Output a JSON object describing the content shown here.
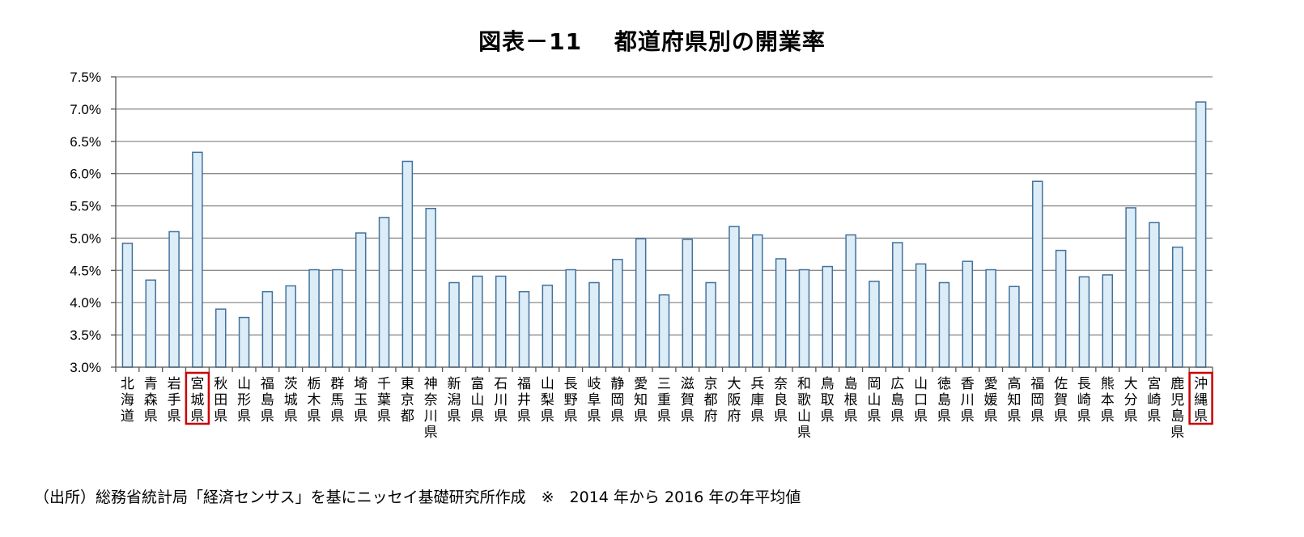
{
  "chart_data": {
    "type": "bar",
    "title": "図表－11　 都道府県別の開業率",
    "xlabel": "",
    "ylabel": "",
    "ylim": [
      3.0,
      7.5
    ],
    "yticks": [
      "3.0%",
      "3.5%",
      "4.0%",
      "4.5%",
      "5.0%",
      "5.5%",
      "6.0%",
      "6.5%",
      "7.0%",
      "7.5%"
    ],
    "grid": true,
    "legend": "none",
    "categories": [
      "北海道",
      "青森県",
      "岩手県",
      "宮城県",
      "秋田県",
      "山形県",
      "福島県",
      "茨城県",
      "栃木県",
      "群馬県",
      "埼玉県",
      "千葉県",
      "東京都",
      "神奈川県",
      "新潟県",
      "富山県",
      "石川県",
      "福井県",
      "山梨県",
      "長野県",
      "岐阜県",
      "静岡県",
      "愛知県",
      "三重県",
      "滋賀県",
      "京都府",
      "大阪府",
      "兵庫県",
      "奈良県",
      "和歌山県",
      "鳥取県",
      "島根県",
      "岡山県",
      "広島県",
      "山口県",
      "徳島県",
      "香川県",
      "愛媛県",
      "高知県",
      "福岡県",
      "佐賀県",
      "長崎県",
      "熊本県",
      "大分県",
      "宮崎県",
      "鹿児島県",
      "沖縄県"
    ],
    "values": [
      4.92,
      4.35,
      5.1,
      6.33,
      3.9,
      3.77,
      4.17,
      4.26,
      4.51,
      4.51,
      5.08,
      5.32,
      6.19,
      5.46,
      4.31,
      4.41,
      4.41,
      4.17,
      4.27,
      4.51,
      4.31,
      4.67,
      4.99,
      4.12,
      4.98,
      4.31,
      5.18,
      5.05,
      4.68,
      4.51,
      4.56,
      5.05,
      4.33,
      4.93,
      4.6,
      4.31,
      4.64,
      4.51,
      4.25,
      5.88,
      4.81,
      4.4,
      4.43,
      5.47,
      5.24,
      4.86,
      7.11
    ],
    "highlighted": [
      "宮城県",
      "沖縄県"
    ],
    "colors": {
      "bar_fill": "#dcedf7",
      "bar_stroke": "#41719c",
      "grid": "#8c8c8c",
      "axis": "#555555",
      "highlight": "#cc0000"
    }
  },
  "source_note": "（出所）総務省統計局「経済センサス」を基にニッセイ基礎研究所作成　※　2014 年から 2016 年の年平均値"
}
